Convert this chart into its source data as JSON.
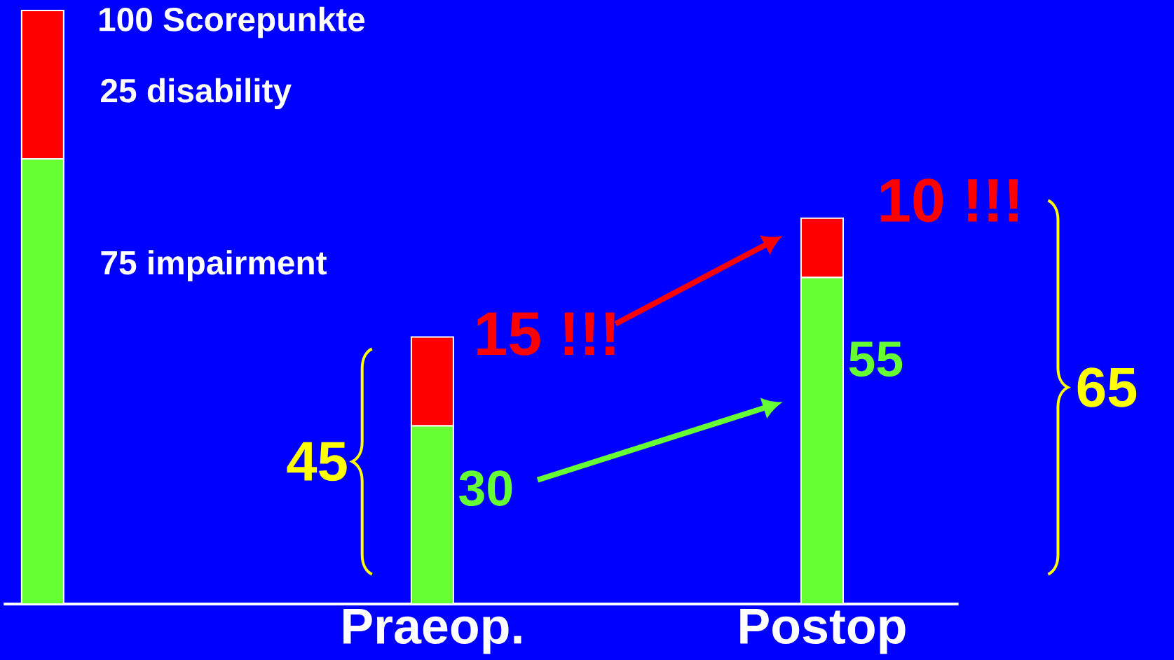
{
  "chart_data": {
    "type": "bar",
    "stacked": true,
    "categories": [
      null,
      "Praeop.",
      "Postop"
    ],
    "series": [
      {
        "color": "#66ff33",
        "values": [
          75,
          30,
          55
        ],
        "value_labels": [
          null,
          "30",
          "55"
        ]
      },
      {
        "color": "#ff0000",
        "values": [
          25,
          15,
          10
        ]
      }
    ],
    "annotations": [
      "75 impairment",
      "25 disability",
      "15 !!!",
      "10 !!!",
      "65"
    ],
    "totals": [
      "100 Scorepunkte",
      "45",
      null
    ]
  }
}
